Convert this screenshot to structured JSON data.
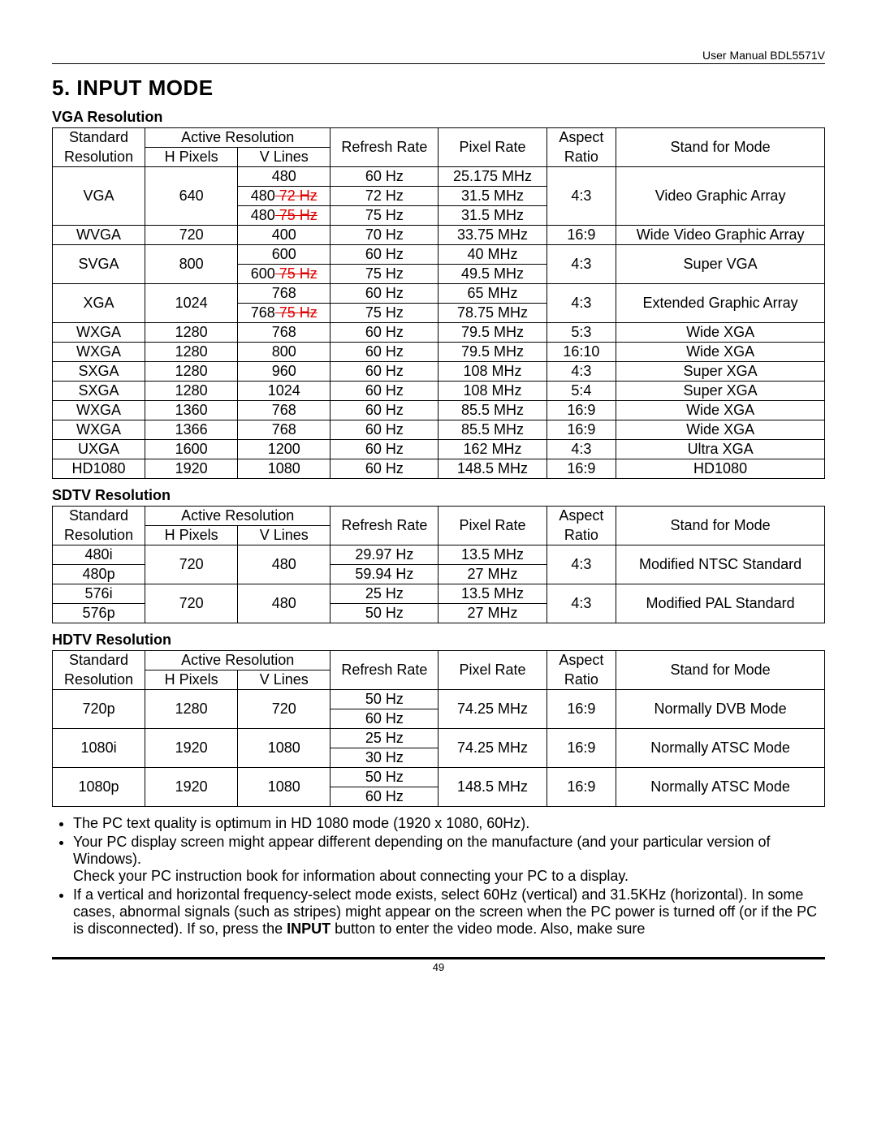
{
  "header_right": "User Manual BDL5571V",
  "title": "5.  INPUT MODE",
  "sections": {
    "vga": {
      "title": "VGA Resolution",
      "head": {
        "std1": "Standard",
        "std2": "Resolution",
        "ar": "Active Resolution",
        "hp": "H Pixels",
        "vl": "V Lines",
        "rr": "Refresh Rate",
        "pr": "Pixel Rate",
        "asp1": "Aspect",
        "asp2": "Ratio",
        "mode": "Stand for Mode"
      },
      "rows": [
        {
          "std": "VGA",
          "hp": "640",
          "vl": "480",
          "rr": "60 Hz",
          "pr": "25.175 MHz",
          "asp": "4:3",
          "mode": "Video Graphic Array",
          "rowspan": {
            "std": 3,
            "hp": 3,
            "asp": 3,
            "mode": 3
          }
        },
        {
          "vl": "480",
          "vl_strike": " 72 Hz",
          "rr": "72 Hz",
          "pr": "31.5 MHz"
        },
        {
          "vl": "480",
          "vl_strike": " 75 Hz",
          "rr": "75 Hz",
          "pr": "31.5 MHz"
        },
        {
          "std": "WVGA",
          "hp": "720",
          "vl": "400",
          "rr": "70 Hz",
          "pr": "33.75 MHz",
          "asp": "16:9",
          "mode": "Wide Video Graphic Array"
        },
        {
          "std": "SVGA",
          "hp": "800",
          "vl": "600",
          "rr": "60 Hz",
          "pr": "40 MHz",
          "asp": "4:3",
          "mode": "Super VGA",
          "rowspan": {
            "std": 2,
            "hp": 2,
            "asp": 2,
            "mode": 2
          }
        },
        {
          "vl": "600",
          "vl_strike": " 75 Hz",
          "rr": "75 Hz",
          "pr": "49.5 MHz"
        },
        {
          "std": "XGA",
          "hp": "1024",
          "vl": "768",
          "rr": "60 Hz",
          "pr": "65 MHz",
          "asp": "4:3",
          "mode": "Extended Graphic Array",
          "rowspan": {
            "std": 2,
            "hp": 2,
            "asp": 2,
            "mode": 2
          }
        },
        {
          "vl": "768",
          "vl_strike": " 75 Hz",
          "rr": "75 Hz",
          "pr": "78.75 MHz"
        },
        {
          "std": "WXGA",
          "hp": "1280",
          "vl": "768",
          "rr": "60 Hz",
          "pr": "79.5 MHz",
          "asp": "5:3",
          "mode": "Wide XGA"
        },
        {
          "std": "WXGA",
          "hp": "1280",
          "vl": "800",
          "rr": "60 Hz",
          "pr": "79.5 MHz",
          "asp": "16:10",
          "mode": "Wide XGA"
        },
        {
          "std": "SXGA",
          "hp": "1280",
          "vl": "960",
          "rr": "60 Hz",
          "pr": "108 MHz",
          "asp": "4:3",
          "mode": "Super XGA"
        },
        {
          "std": "SXGA",
          "hp": "1280",
          "vl": "1024",
          "rr": "60 Hz",
          "pr": "108 MHz",
          "asp": "5:4",
          "mode": "Super XGA"
        },
        {
          "std": "WXGA",
          "hp": "1360",
          "vl": "768",
          "rr": "60 Hz",
          "pr": "85.5 MHz",
          "asp": "16:9",
          "mode": "Wide XGA"
        },
        {
          "std": "WXGA",
          "hp": "1366",
          "vl": "768",
          "rr": "60 Hz",
          "pr": "85.5 MHz",
          "asp": "16:9",
          "mode": "Wide XGA"
        },
        {
          "std": "UXGA",
          "hp": "1600",
          "vl": "1200",
          "rr": "60 Hz",
          "pr": "162 MHz",
          "asp": "4:3",
          "mode": "Ultra XGA"
        },
        {
          "std": "HD1080",
          "hp": "1920",
          "vl": "1080",
          "rr": "60 Hz",
          "pr": "148.5 MHz",
          "asp": "16:9",
          "mode": "HD1080"
        }
      ]
    },
    "sdtv": {
      "title": "SDTV Resolution",
      "rows": [
        {
          "std": "480i",
          "hp": "720",
          "vl": "480",
          "rr": "29.97 Hz",
          "pr": "13.5 MHz",
          "asp": "4:3",
          "mode": "Modified NTSC Standard",
          "rowspan": {
            "hp": 2,
            "vl": 2,
            "asp": 2,
            "mode": 2
          }
        },
        {
          "std": "480p",
          "rr": "59.94 Hz",
          "pr": "27 MHz"
        },
        {
          "std": "576i",
          "hp": "720",
          "vl": "480",
          "rr": "25 Hz",
          "pr": "13.5 MHz",
          "asp": "4:3",
          "mode": "Modified PAL Standard",
          "rowspan": {
            "hp": 2,
            "vl": 2,
            "asp": 2,
            "mode": 2
          }
        },
        {
          "std": "576p",
          "rr": "50 Hz",
          "pr": "27 MHz"
        }
      ]
    },
    "hdtv": {
      "title": "HDTV Resolution",
      "rows": [
        {
          "std": "720p",
          "hp": "1280",
          "vl": "720",
          "rr": "50 Hz",
          "pr": "74.25 MHz",
          "asp": "16:9",
          "mode": "Normally DVB Mode",
          "rowspan": {
            "std": 2,
            "hp": 2,
            "vl": 2,
            "pr": 2,
            "asp": 2,
            "mode": 2
          }
        },
        {
          "rr": "60 Hz"
        },
        {
          "std": "1080i",
          "hp": "1920",
          "vl": "1080",
          "rr": "25 Hz",
          "pr": "74.25 MHz",
          "asp": "16:9",
          "mode": "Normally ATSC Mode",
          "rowspan": {
            "std": 2,
            "hp": 2,
            "vl": 2,
            "pr": 2,
            "asp": 2,
            "mode": 2
          }
        },
        {
          "rr": "30 Hz"
        },
        {
          "std": "1080p",
          "hp": "1920",
          "vl": "1080",
          "rr": "50 Hz",
          "pr": "148.5 MHz",
          "asp": "16:9",
          "mode": "Normally ATSC Mode",
          "rowspan": {
            "std": 2,
            "hp": 2,
            "vl": 2,
            "pr": 2,
            "asp": 2,
            "mode": 2
          }
        },
        {
          "rr": "60 Hz"
        }
      ]
    }
  },
  "notes": [
    "The PC text quality is optimum in HD 1080 mode (1920 x 1080, 60Hz).",
    "Your PC display screen might appear different depending on the manufacture (and your particular version of Windows).\nCheck your PC instruction book for information about connecting your PC to a display.",
    "If a vertical and horizontal frequency-select mode exists, select 60Hz (vertical) and 31.5KHz (horizontal). In some cases, abnormal signals (such as stripes) might appear on the screen when the PC power is turned off (or if the PC is disconnected). If so, press the <b>INPUT</b> button to enter the video mode. Also, make sure"
  ],
  "page_num": "49",
  "col_widths": {
    "std": "12%",
    "hp": "12%",
    "vl": "12%",
    "rr": "14%",
    "pr": "14%",
    "asp": "9%",
    "mode": "27%"
  }
}
